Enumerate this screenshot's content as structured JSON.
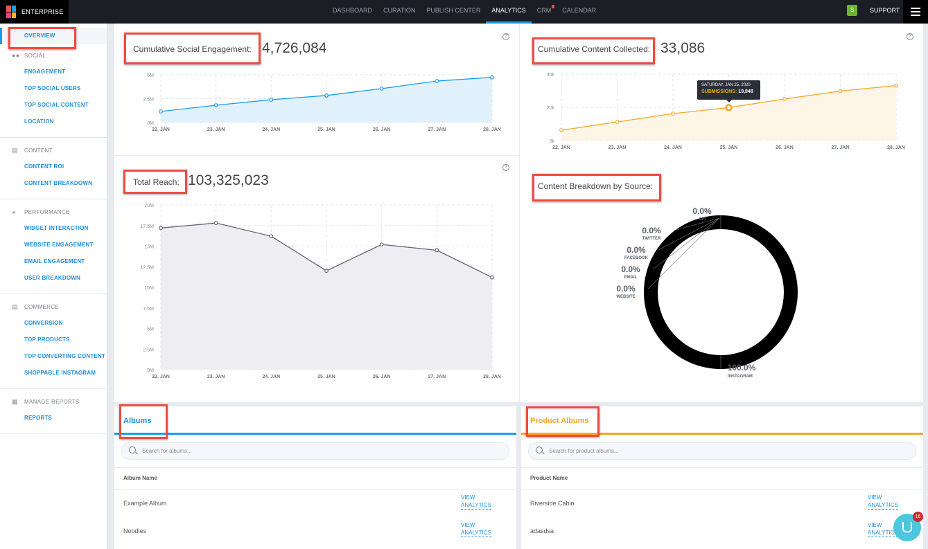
{
  "nav": {
    "brand": "ENTERPRISE",
    "items": [
      "DASHBOARD",
      "CURATION",
      "PUBLISH CENTER",
      "ANALYTICS",
      "CRM",
      "CALENDAR"
    ],
    "active": "ANALYTICS",
    "user_initial": "S",
    "support": "SUPPORT"
  },
  "sidebar": {
    "overview": "OVERVIEW",
    "groups": [
      {
        "title": "SOCIAL",
        "icon": "users-icon",
        "items": [
          "ENGAGEMENT",
          "TOP SOCIAL USERS",
          "TOP SOCIAL CONTENT",
          "LOCATION"
        ]
      },
      {
        "title": "CONTENT",
        "icon": "image-icon",
        "items": [
          "CONTENT ROI",
          "CONTENT BREAKDOWN"
        ]
      },
      {
        "title": "PERFORMANCE",
        "icon": "gauge-icon",
        "items": [
          "WIDGET INTERACTION",
          "WEBSITE ENGAGEMENT",
          "EMAIL ENGAGEMENT",
          "USER BREAKDOWN"
        ]
      },
      {
        "title": "COMMERCE",
        "icon": "basket-icon",
        "items": [
          "CONVERSION",
          "TOP PRODUCTS",
          "TOP CONVERTING CONTENT",
          "SHOPPABLE INSTAGRAM"
        ]
      },
      {
        "title": "MANAGE REPORTS",
        "icon": "table-icon",
        "items": [
          "REPORTS"
        ]
      }
    ]
  },
  "metrics": {
    "social": {
      "label": "Cumulative Social Engagement:",
      "value": "4,726,084"
    },
    "content": {
      "label": "Cumulative Content Collected:",
      "value": "33,086"
    },
    "reach": {
      "label": "Total Reach:",
      "value": "103,325,023"
    },
    "breakdown": {
      "label": "Content Breakdown by Source:"
    }
  },
  "tooltip": {
    "date": "SATURDAY, JAN 25, 2020",
    "series": "SUBMISSIONS:",
    "value": "19,848"
  },
  "colors": {
    "accent_blue": "#1a9bf0",
    "accent_orange": "#f5a623",
    "reach_line": "#5d6275",
    "donut": "#000000"
  },
  "chart_data": [
    {
      "type": "area",
      "categories": [
        "22. JAN",
        "23. JAN",
        "24. JAN",
        "25. JAN",
        "26. JAN",
        "27. JAN",
        "28. JAN"
      ],
      "values": [
        1160000,
        1810000,
        2390000,
        2830000,
        3550000,
        4350000,
        4726084
      ],
      "ylim": [
        0,
        5000000
      ],
      "yticks": [
        "0M",
        "2.5M",
        "5M"
      ],
      "grid": true,
      "color": "#1a9bf0",
      "fill": "#e1f1fc"
    },
    {
      "type": "area",
      "categories": [
        "22. JAN",
        "23. JAN",
        "24. JAN",
        "25. JAN",
        "26. JAN",
        "27. JAN",
        "28. JAN"
      ],
      "values": [
        6200,
        11200,
        16200,
        19848,
        25000,
        29800,
        33086
      ],
      "ylim": [
        0,
        40000
      ],
      "yticks": [
        "0k",
        "20k",
        "40k"
      ],
      "grid": true,
      "color": "#f5a623",
      "fill": "#fdf5e6"
    },
    {
      "type": "area",
      "categories": [
        "22. JAN",
        "23. JAN",
        "24. JAN",
        "25. JAN",
        "26. JAN",
        "27. JAN",
        "28. JAN"
      ],
      "values": [
        17200000,
        17800000,
        16200000,
        12000000,
        15200000,
        14500000,
        11200000
      ],
      "ylim": [
        0,
        20000000
      ],
      "yticks": [
        "0M",
        "2.5M",
        "5M",
        "7.5M",
        "10M",
        "12.5M",
        "15M",
        "17.5M",
        "20M"
      ],
      "grid": true,
      "color": "#5d6275",
      "fill": "#eeeef2"
    },
    {
      "type": "pie",
      "slices": [
        {
          "name": "API",
          "pct": "0.0%",
          "value": 0
        },
        {
          "name": "TWITTER",
          "pct": "0.0%",
          "value": 0
        },
        {
          "name": "FACEBOOK",
          "pct": "0.0%",
          "value": 0
        },
        {
          "name": "EMAIL",
          "pct": "0.0%",
          "value": 0
        },
        {
          "name": "WEBSITE",
          "pct": "0.0%",
          "value": 0
        },
        {
          "name": "INSTAGRAM",
          "pct": "100.0%",
          "value": 100
        }
      ]
    }
  ],
  "albums": {
    "title": "Albums",
    "placeholder": "Search for albums...",
    "column": "Album Name",
    "rows": [
      {
        "name": "Example Album",
        "action": [
          "VIEW",
          "ANALYTICS"
        ]
      },
      {
        "name": "Noodles",
        "action": [
          "VIEW",
          "ANALYTICS"
        ]
      }
    ]
  },
  "product_albums": {
    "title": "Product Albums",
    "placeholder": "Search for product albums...",
    "column": "Product Name",
    "rows": [
      {
        "name": "Riverside Cabin",
        "action": [
          "VIEW",
          "ANALYTICS"
        ]
      },
      {
        "name": "adasdsa",
        "action": [
          "VIEW",
          "ANALYTICS"
        ]
      }
    ]
  },
  "chat": {
    "badge": "16"
  }
}
